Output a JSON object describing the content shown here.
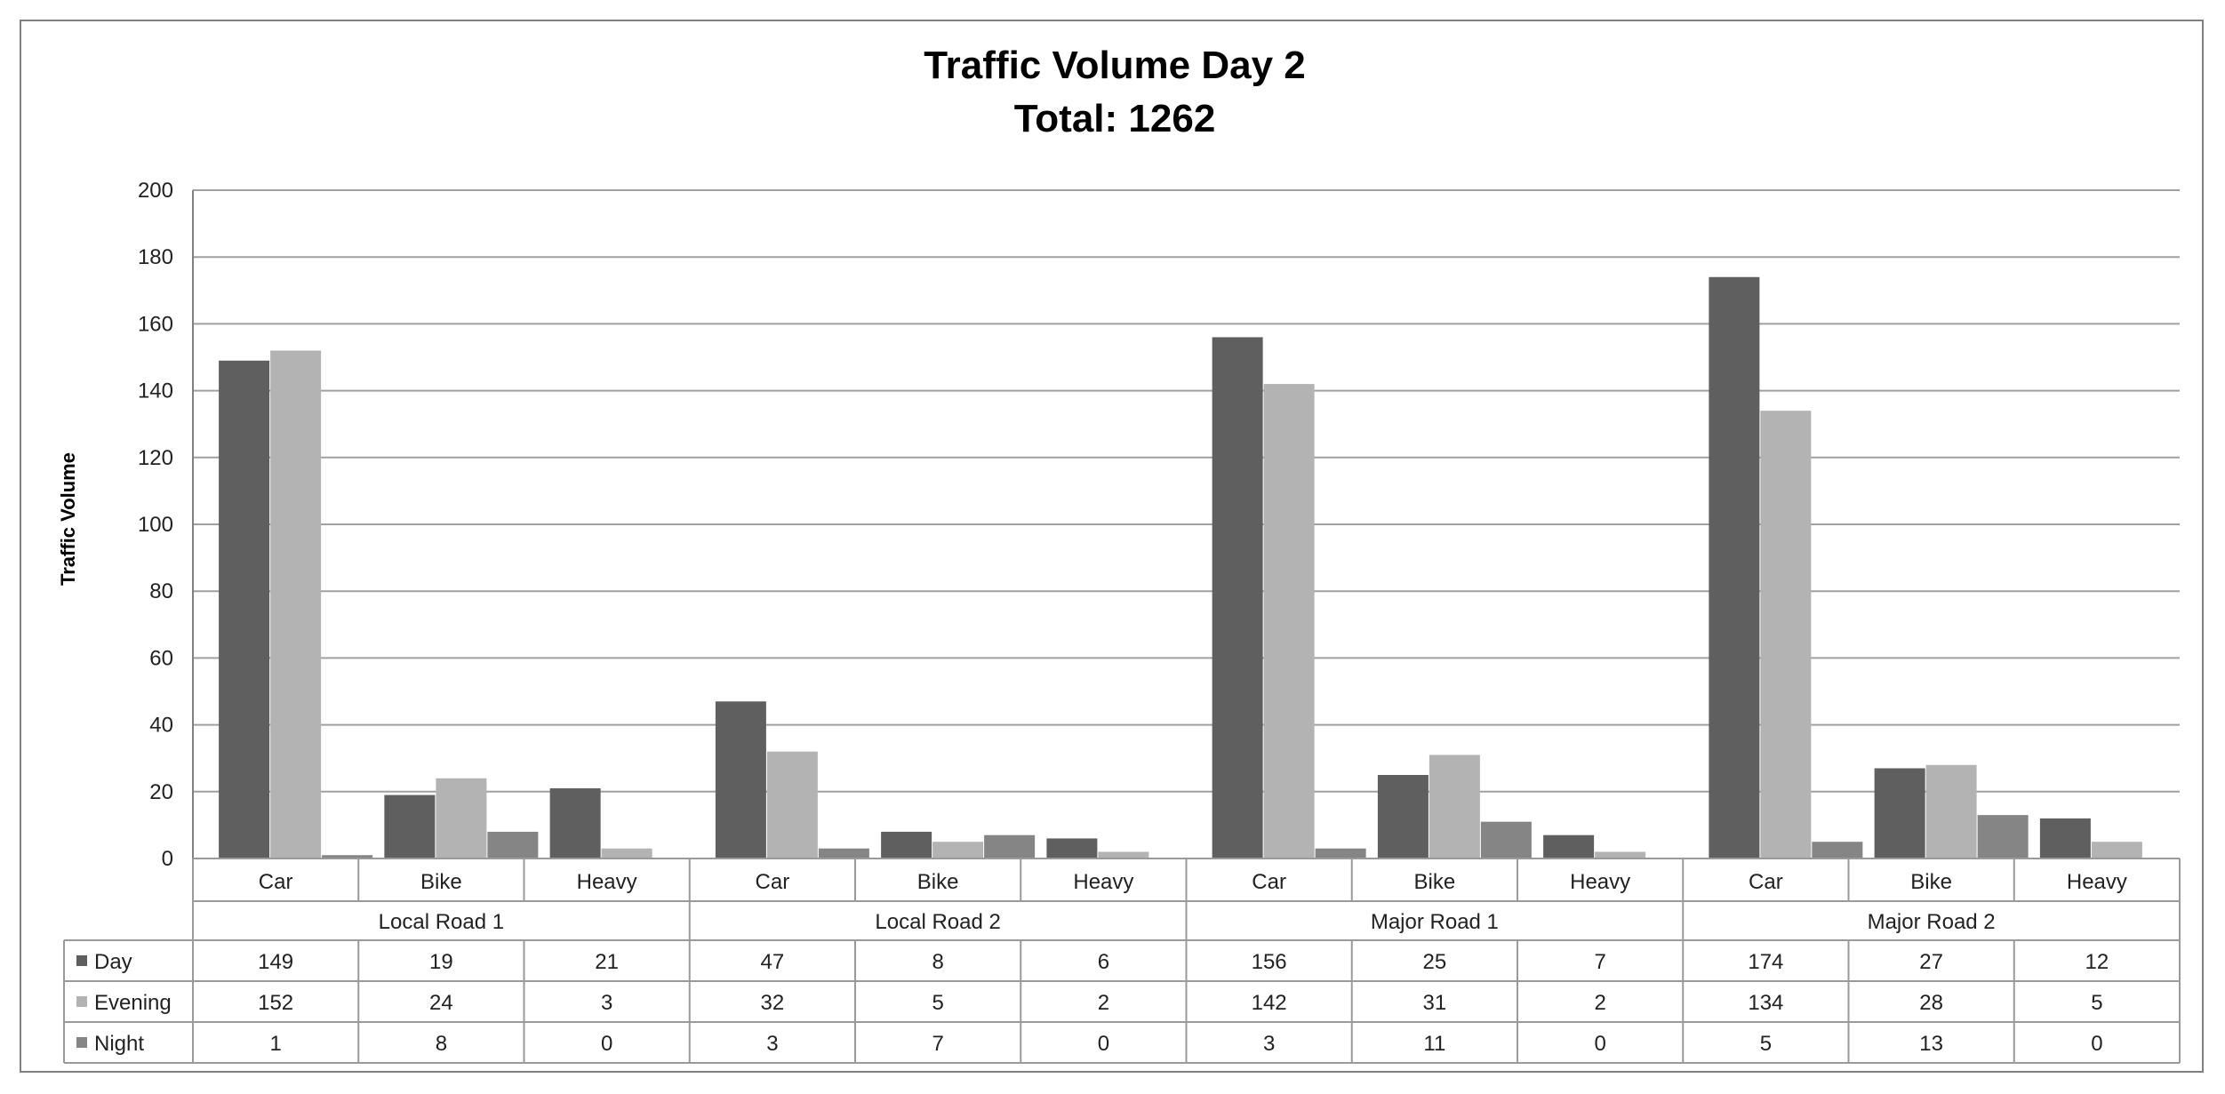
{
  "chart_data": {
    "type": "bar",
    "title": "Traffic Volume Day 2",
    "subtitle": "Total: 1262",
    "xlabel": "",
    "ylabel": "Traffic Volume",
    "ylim": [
      0,
      200
    ],
    "yticks": [
      "0",
      "20",
      "40",
      "60",
      "80",
      "100",
      "120",
      "140",
      "160",
      "180",
      "200"
    ],
    "grid": true,
    "legend_placement": "data table rows",
    "groups": [
      "Local Road 1",
      "Local Road 2",
      "Major Road 1",
      "Major Road 2"
    ],
    "categories": [
      "Car",
      "Bike",
      "Heavy",
      "Car",
      "Bike",
      "Heavy",
      "Car",
      "Bike",
      "Heavy",
      "Car",
      "Bike",
      "Heavy"
    ],
    "series": [
      {
        "name": "Day",
        "color": "#5f5f5f",
        "values": [
          149,
          19,
          21,
          47,
          8,
          6,
          156,
          25,
          7,
          174,
          27,
          12
        ]
      },
      {
        "name": "Evening",
        "color": "#b3b3b3",
        "values": [
          152,
          24,
          3,
          32,
          5,
          2,
          142,
          31,
          2,
          134,
          28,
          5
        ]
      },
      {
        "name": "Night",
        "color": "#858585",
        "values": [
          1,
          8,
          0,
          3,
          7,
          0,
          3,
          11,
          0,
          5,
          13,
          0
        ]
      }
    ]
  }
}
